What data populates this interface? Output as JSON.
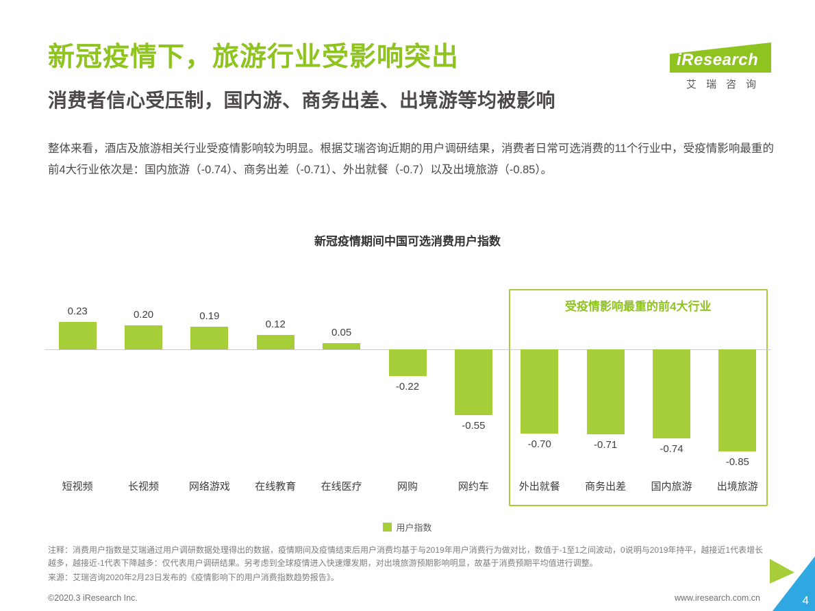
{
  "theme": {
    "accent": "#8FC31F",
    "bar_green": "#A5CE38",
    "corner_blue": "#2FA8E1"
  },
  "header": {
    "title": "新冠疫情下，旅游行业受影响突出",
    "subtitle": "消费者信心受压制，国内游、商务出差、出境游等均被影响"
  },
  "logo": {
    "brand": "iResearch",
    "brand_cn": "艾瑞咨询"
  },
  "body_text": "整体来看，酒店及旅游相关行业受疫情影响较为明显。根据艾瑞咨询近期的用户调研结果，消费者日常可选消费的11个行业中，受疫情影响最重的前4大行业依次是：国内旅游（-0.74）、商务出差（-0.71）、外出就餐（-0.7）以及出境旅游（-0.85）。",
  "chart_data": {
    "type": "bar",
    "title": "新冠疫情期间中国可选消费用户指数",
    "categories": [
      "短视频",
      "长视频",
      "网络游戏",
      "在线教育",
      "在线医疗",
      "网购",
      "网约车",
      "外出就餐",
      "商务出差",
      "国内旅游",
      "出境旅游"
    ],
    "values": [
      0.23,
      0.2,
      0.19,
      0.12,
      0.05,
      -0.22,
      -0.55,
      -0.7,
      -0.71,
      -0.74,
      -0.85
    ],
    "value_labels": [
      "0.23",
      "0.20",
      "0.19",
      "0.12",
      "0.05",
      "-0.22",
      "-0.55",
      "-0.70",
      "-0.71",
      "-0.74",
      "-0.85"
    ],
    "ylim": [
      -1,
      0.4
    ],
    "bar_color": "#A5CE38",
    "legend": "用户指数",
    "legend_position": "bottom-center",
    "grid": false,
    "highlight": {
      "label": "受疫情影响最重的前4大行业",
      "start_index": 7,
      "end_index": 10
    }
  },
  "footnotes": {
    "note": "注释：消费用户指数是艾瑞通过用户调研数据处理得出的数据，疫情期间及疫情结束后用户消费均基于与2019年用户消费行为做对比，数值于-1至1之间波动，0说明与2019年持平，越接近1代表增长越多，越接近-1代表下降越多：仅代表用户调研结果。另考虑到全球疫情进入快速爆发期，对出境旅游预期影响明显，故基于消费预期平均值进行调整。",
    "source": "来源：艾瑞咨询2020年2月23日发布的《疫情影响下的用户消费指数趋势报告》。"
  },
  "footer": {
    "copyright": "©2020.3 iResearch Inc.",
    "website": "www.iresearch.com.cn",
    "page_number": "4"
  }
}
